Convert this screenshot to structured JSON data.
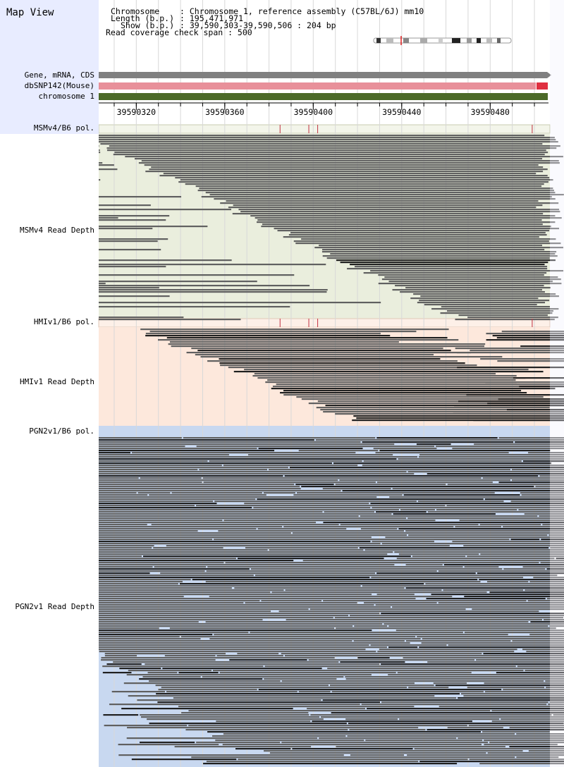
{
  "title": "Map View",
  "info": {
    "chromosome_key": "Chromosome",
    "chromosome_val": ": Chromosome 1, reference assembly (C57BL/6J) mm10",
    "length_key": "Length (b.p.)",
    "length_val": ": 195,471,971",
    "show_key": "Show (b.p.)",
    "show_val": ": 39,590,303-39,590,506 : 204 bp",
    "coverage": "Read coverage check span : 500"
  },
  "tracks": {
    "gene": "Gene, mRNA, CDS",
    "dbsnp": "dbSNP142(Mouse)",
    "chromosome": "chromosome 1",
    "msm_pol": "MSMv4/B6 pol.",
    "msm_depth": "MSMv4 Read Depth",
    "hmi_pol": "HMIv1/B6 pol.",
    "hmi_depth": "HMIv1 Read Depth",
    "pgn_pol": "PGN2v1/B6 pol.",
    "pgn_depth": "PGN2v1 Read Depth"
  },
  "ruler": {
    "start_bp": 39590303,
    "end_bp": 39590506,
    "ticks": [
      "39590320",
      "39590360",
      "39590400",
      "39590440",
      "39590480"
    ]
  },
  "snp_positions_bp": [
    39590385,
    39590398,
    39590402,
    39590499
  ],
  "colors": {
    "gene_bar": "#808080",
    "dbsnp_bar": "#e8909a",
    "dbsnp_mark": "#e03040",
    "chromosome_bar": "#4c6a28",
    "msm_bg": "#eaeedd",
    "hmi_bg": "#fde8dc",
    "pgn_bg": "#c8d8f0",
    "read": "#606060",
    "read_dark": "#202020",
    "snp_line": "#c03040"
  }
}
